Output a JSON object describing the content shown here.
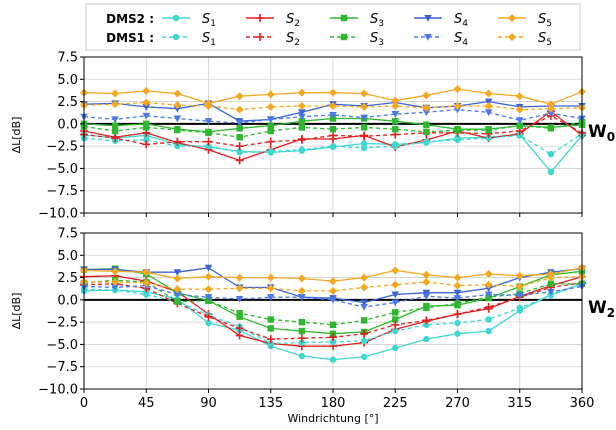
{
  "legend": {
    "groups": [
      {
        "label": "DMS2 :",
        "style": "solid"
      },
      {
        "label": "DMS1 :",
        "style": "dashed"
      }
    ],
    "sensors": [
      {
        "key": "S1",
        "base": "S",
        "sub": "1"
      },
      {
        "key": "S2",
        "base": "S",
        "sub": "2"
      },
      {
        "key": "S3",
        "base": "S",
        "sub": "3"
      },
      {
        "key": "S4",
        "base": "S",
        "sub": "4"
      },
      {
        "key": "S5",
        "base": "S",
        "sub": "5"
      }
    ]
  },
  "colors": {
    "S1": "#3ed8d0",
    "S2": "#e02020",
    "S3": "#2eb82e",
    "S4": "#3a63d6",
    "S5": "#f5a81e",
    "dashed_S4": "#4a78e8"
  },
  "markers": {
    "S1": "circle",
    "S2": "plus",
    "S3": "square",
    "S4": "triangle-down",
    "S5": "diamond"
  },
  "chart_data": [
    {
      "type": "line",
      "tag": "W",
      "tag_sub": "0",
      "ylabel": "ΔL[dB]",
      "xlabel": "",
      "xlim": [
        0,
        360
      ],
      "ylim": [
        -10,
        7.5
      ],
      "yticks": [
        "7.5",
        "5.0",
        "2.5",
        "0.0",
        "−2.5",
        "−5.0",
        "−7.5",
        "−10.0"
      ],
      "xticks": [],
      "grid": true,
      "x": [
        0,
        22.5,
        45,
        67.5,
        90,
        112.5,
        135,
        157.5,
        180,
        202.5,
        225,
        247.5,
        270,
        292.5,
        315,
        337.5,
        360
      ],
      "series": [
        {
          "sensor": "S1",
          "group": "DMS2",
          "values": [
            -1.2,
            -1.6,
            -1.3,
            -2.3,
            -2.6,
            -3.1,
            -3.2,
            -3.0,
            -2.6,
            -2.2,
            -2.3,
            -2.1,
            -1.6,
            -1.5,
            -1.2,
            -5.4,
            -1.3
          ]
        },
        {
          "sensor": "S2",
          "group": "DMS2",
          "values": [
            -0.8,
            -1.5,
            -1.0,
            -2.1,
            -2.9,
            -4.1,
            -2.9,
            -1.7,
            -1.7,
            -1.3,
            -2.6,
            -1.8,
            -0.8,
            -1.6,
            -1.1,
            1.4,
            -1.3
          ]
        },
        {
          "sensor": "S3",
          "group": "DMS2",
          "values": [
            0.0,
            -0.2,
            0.0,
            -0.6,
            -0.9,
            -0.5,
            -0.2,
            0.3,
            0.6,
            0.6,
            0.3,
            -0.1,
            -0.6,
            -0.6,
            -0.2,
            -0.4,
            -0.1
          ]
        },
        {
          "sensor": "S4",
          "group": "DMS2",
          "values": [
            2.2,
            2.3,
            1.9,
            1.7,
            2.3,
            0.3,
            0.5,
            1.3,
            2.2,
            2.0,
            2.4,
            1.8,
            2.0,
            2.5,
            1.9,
            2.0,
            2.0
          ]
        },
        {
          "sensor": "S5",
          "group": "DMS2",
          "values": [
            3.5,
            3.4,
            3.7,
            3.4,
            2.3,
            3.1,
            3.3,
            3.5,
            3.5,
            3.4,
            2.6,
            3.2,
            3.9,
            3.4,
            3.1,
            2.2,
            3.6
          ]
        },
        {
          "sensor": "S1",
          "group": "DMS1",
          "values": [
            -1.6,
            -1.9,
            -1.8,
            -2.5,
            -2.5,
            -3.2,
            -3.1,
            -2.9,
            -2.5,
            -2.7,
            -2.5,
            -2.0,
            -1.8,
            -1.6,
            -1.3,
            -3.4,
            -1.1
          ]
        },
        {
          "sensor": "S2",
          "group": "DMS1",
          "values": [
            -1.2,
            -1.6,
            -2.3,
            -2.0,
            -2.0,
            -2.5,
            -2.0,
            -1.8,
            -1.3,
            -1.4,
            -1.2,
            -1.0,
            -1.0,
            -1.1,
            -0.8,
            0.9,
            -1.0
          ]
        },
        {
          "sensor": "S3",
          "group": "DMS1",
          "values": [
            -0.3,
            -0.8,
            -0.4,
            -0.7,
            -1.0,
            -1.5,
            -0.8,
            -0.4,
            -0.6,
            -0.4,
            -0.6,
            -0.9,
            -0.7,
            -0.7,
            -0.2,
            -0.5,
            0.2
          ]
        },
        {
          "sensor": "S4",
          "group": "DMS1",
          "values": [
            0.8,
            0.5,
            0.9,
            0.6,
            0.3,
            0.1,
            0.5,
            0.8,
            1.0,
            0.7,
            1.1,
            1.3,
            1.6,
            1.3,
            0.4,
            1.2,
            0.6
          ]
        },
        {
          "sensor": "S5",
          "group": "DMS1",
          "values": [
            2.1,
            2.2,
            2.4,
            2.1,
            2.0,
            1.6,
            1.9,
            2.0,
            2.0,
            1.9,
            2.0,
            1.8,
            2.0,
            2.0,
            1.6,
            1.7,
            1.8
          ]
        }
      ]
    },
    {
      "type": "line",
      "tag": "W",
      "tag_sub": "2",
      "ylabel": "ΔL[dB]",
      "xlabel": "Windrichtung [°]",
      "xlim": [
        0,
        360
      ],
      "ylim": [
        -10,
        7.5
      ],
      "yticks": [
        "7.5",
        "5.0",
        "2.5",
        "0.0",
        "−2.5",
        "−5.0",
        "−7.5",
        "−10.0"
      ],
      "xticks": [
        "0",
        "45",
        "90",
        "135",
        "180",
        "225",
        "270",
        "315",
        "360"
      ],
      "grid": true,
      "x": [
        0,
        22.5,
        45,
        67.5,
        90,
        112.5,
        135,
        157.5,
        180,
        202.5,
        225,
        247.5,
        270,
        292.5,
        315,
        337.5,
        360
      ],
      "series": [
        {
          "sensor": "S1",
          "group": "DMS2",
          "values": [
            1.0,
            1.1,
            0.9,
            0.1,
            -2.6,
            -3.4,
            -5.2,
            -6.3,
            -6.7,
            -6.4,
            -5.4,
            -4.4,
            -3.8,
            -3.5,
            -1.2,
            0.6,
            1.8
          ]
        },
        {
          "sensor": "S2",
          "group": "DMS2",
          "values": [
            2.6,
            2.7,
            2.1,
            0.9,
            -1.6,
            -4.0,
            -4.9,
            -5.2,
            -5.2,
            -4.8,
            -3.3,
            -2.4,
            -1.6,
            -1.0,
            0.4,
            1.6,
            2.6
          ]
        },
        {
          "sensor": "S3",
          "group": "DMS2",
          "values": [
            3.4,
            3.5,
            2.9,
            0.8,
            -0.1,
            -1.9,
            -3.2,
            -3.5,
            -3.8,
            -3.6,
            -2.2,
            -0.7,
            -0.6,
            0.2,
            1.5,
            2.8,
            3.2
          ]
        },
        {
          "sensor": "S4",
          "group": "DMS2",
          "values": [
            3.4,
            3.4,
            3.1,
            3.1,
            3.6,
            1.4,
            1.4,
            0.3,
            0.2,
            -0.3,
            0.6,
            0.8,
            0.8,
            1.3,
            2.5,
            3.1,
            3.5
          ]
        },
        {
          "sensor": "S5",
          "group": "DMS2",
          "values": [
            3.3,
            3.2,
            3.1,
            2.4,
            2.6,
            2.5,
            2.5,
            2.4,
            2.1,
            2.5,
            3.3,
            2.8,
            2.5,
            2.9,
            2.7,
            2.9,
            3.6
          ]
        },
        {
          "sensor": "S1",
          "group": "DMS1",
          "values": [
            1.2,
            1.1,
            0.6,
            -0.2,
            -1.7,
            -3.0,
            -4.9,
            -4.8,
            -4.7,
            -4.6,
            -3.5,
            -2.8,
            -2.6,
            -2.2,
            -0.9,
            0.5,
            1.8
          ]
        },
        {
          "sensor": "S2",
          "group": "DMS1",
          "values": [
            1.7,
            1.8,
            1.3,
            -0.4,
            -1.9,
            -3.2,
            -4.4,
            -4.3,
            -4.2,
            -3.8,
            -2.8,
            -2.3,
            -1.6,
            -0.8,
            0.3,
            1.4,
            1.9
          ]
        },
        {
          "sensor": "S3",
          "group": "DMS1",
          "values": [
            1.9,
            2.2,
            2.0,
            -0.2,
            -0.1,
            -1.5,
            -2.2,
            -2.5,
            -2.8,
            -2.3,
            -1.4,
            -0.9,
            -0.4,
            0.3,
            0.7,
            1.8,
            1.8
          ]
        },
        {
          "sensor": "S4",
          "group": "DMS1",
          "values": [
            1.5,
            1.4,
            1.6,
            0.6,
            0.3,
            0.1,
            0.3,
            0.3,
            0.0,
            -0.8,
            -0.3,
            0.4,
            0.2,
            0.6,
            0.5,
            0.9,
            1.5
          ]
        },
        {
          "sensor": "S5",
          "group": "DMS1",
          "values": [
            2.0,
            2.0,
            1.9,
            1.2,
            1.2,
            1.3,
            1.3,
            1.0,
            1.0,
            1.4,
            1.7,
            2.0,
            1.6,
            1.7,
            1.5,
            2.5,
            2.6
          ]
        }
      ]
    }
  ]
}
